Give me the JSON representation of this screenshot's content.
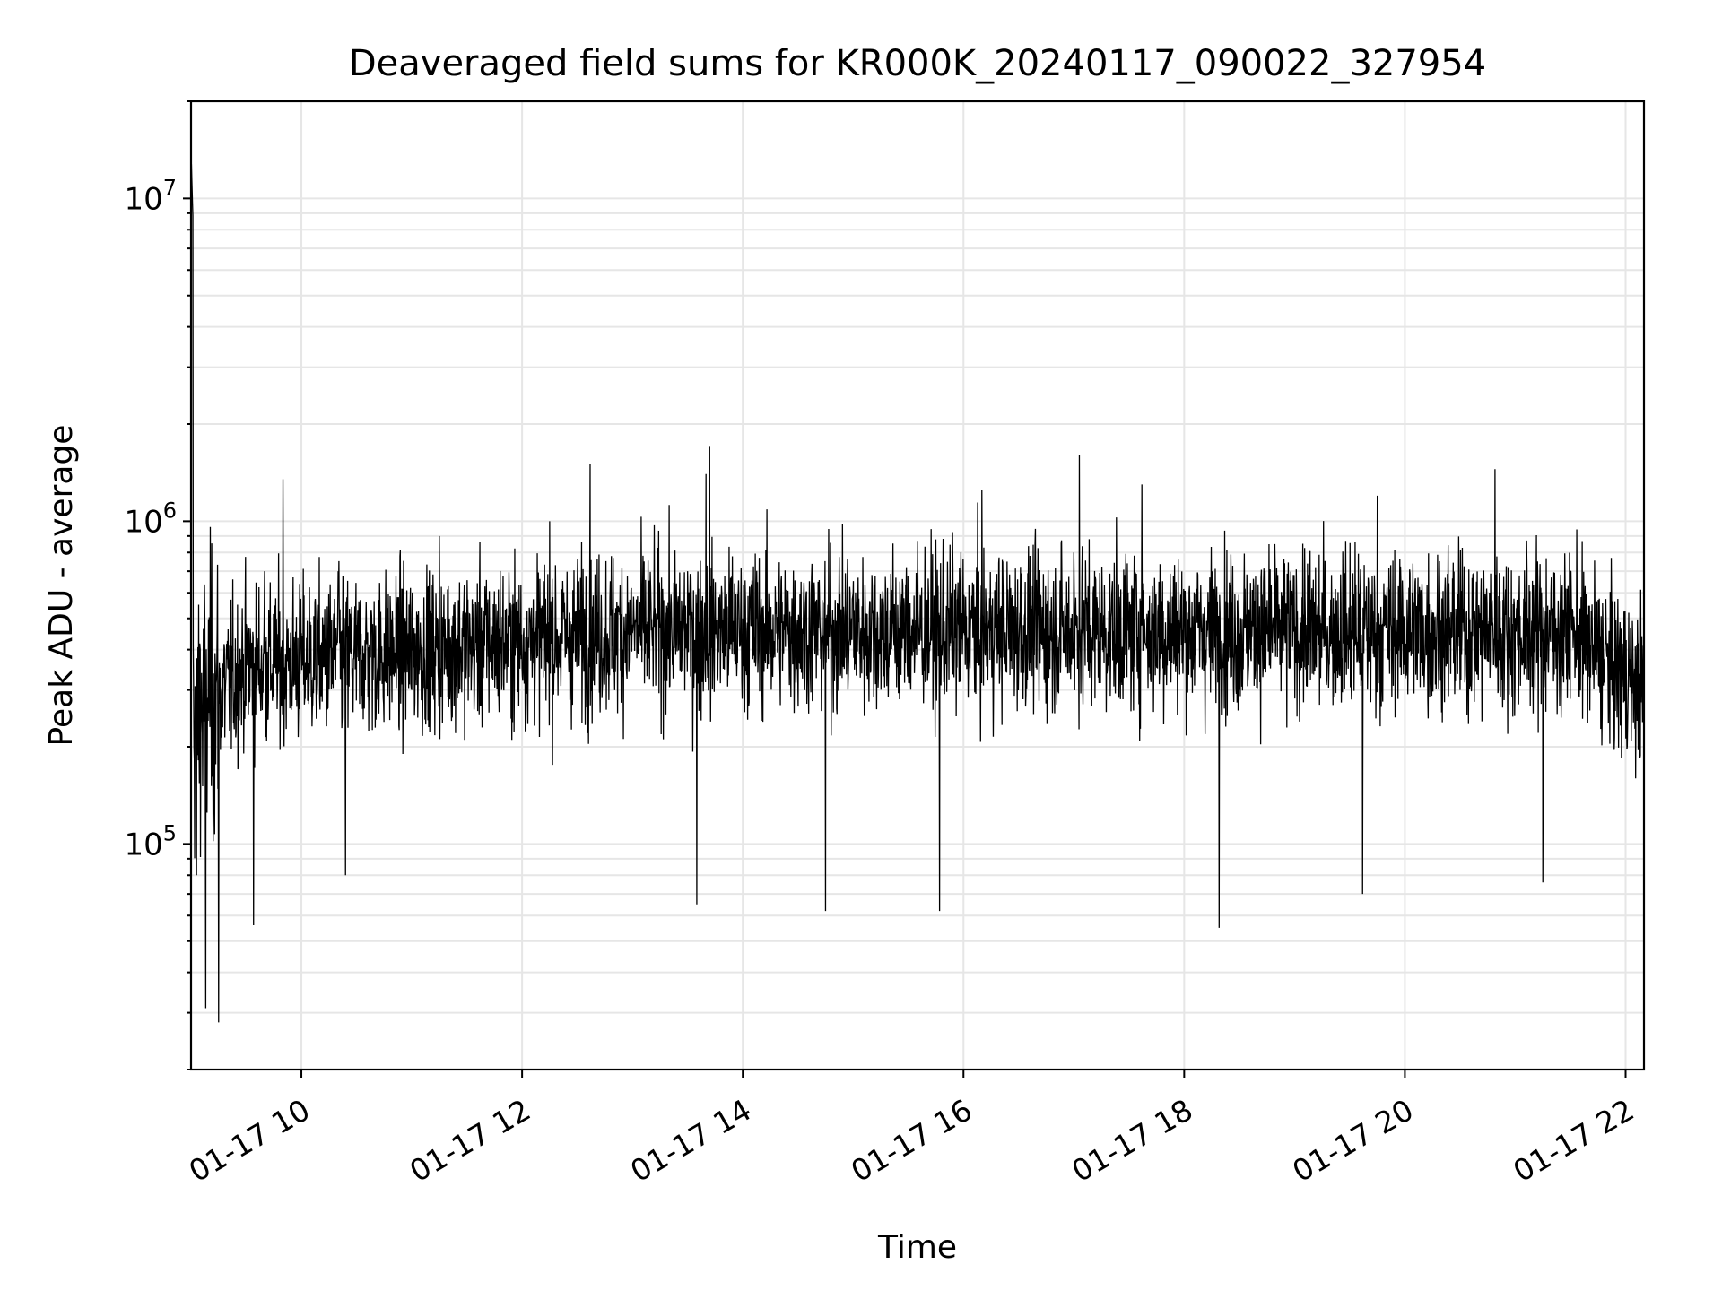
{
  "chart_data": {
    "type": "line",
    "title": "Deaveraged field sums for KR000K_20240117_090022_327954",
    "xlabel": "Time",
    "ylabel": "Peak ADU - average",
    "y_scale": "log",
    "ylim": [
      20000,
      20000000
    ],
    "xlim": [
      "2024-01-17 09:00",
      "2024-01-17 22:10"
    ],
    "grid": true,
    "line_color": "#000000",
    "x_ticks": [
      {
        "value": "2024-01-17 10:00",
        "label": "01-17 10"
      },
      {
        "value": "2024-01-17 12:00",
        "label": "01-17 12"
      },
      {
        "value": "2024-01-17 14:00",
        "label": "01-17 14"
      },
      {
        "value": "2024-01-17 16:00",
        "label": "01-17 16"
      },
      {
        "value": "2024-01-17 18:00",
        "label": "01-17 18"
      },
      {
        "value": "2024-01-17 20:00",
        "label": "01-17 20"
      },
      {
        "value": "2024-01-17 22:00",
        "label": "01-17 22"
      }
    ],
    "y_ticks": [
      {
        "value": 100000,
        "base": "10",
        "exp": "5"
      },
      {
        "value": 1000000,
        "base": "10",
        "exp": "6"
      },
      {
        "value": 10000000,
        "base": "10",
        "exp": "7"
      }
    ],
    "series": [
      {
        "x": [
          "2024-01-17 09:00",
          "2024-01-17 09:01",
          "2024-01-17 09:03",
          "2024-01-17 09:05",
          "2024-01-17 09:08",
          "2024-01-17 09:10",
          "2024-01-17 09:15",
          "2024-01-17 09:20",
          "2024-01-17 09:30",
          "2024-01-17 09:34",
          "2024-01-17 09:40",
          "2024-01-17 09:45",
          "2024-01-17 09:50",
          "2024-01-17 10:00",
          "2024-01-17 10:20",
          "2024-01-17 10:24",
          "2024-01-17 10:45",
          "2024-01-17 11:00",
          "2024-01-17 11:15",
          "2024-01-17 11:30",
          "2024-01-17 12:00",
          "2024-01-17 12:15",
          "2024-01-17 12:37",
          "2024-01-17 12:47",
          "2024-01-17 13:00",
          "2024-01-17 13:30",
          "2024-01-17 13:35",
          "2024-01-17 13:40",
          "2024-01-17 13:42",
          "2024-01-17 14:00",
          "2024-01-17 14:30",
          "2024-01-17 14:45",
          "2024-01-17 15:00",
          "2024-01-17 15:30",
          "2024-01-17 15:47",
          "2024-01-17 16:00",
          "2024-01-17 16:10",
          "2024-01-17 16:30",
          "2024-01-17 17:00",
          "2024-01-17 17:03",
          "2024-01-17 17:30",
          "2024-01-17 17:37",
          "2024-01-17 18:00",
          "2024-01-17 18:19",
          "2024-01-17 18:30",
          "2024-01-17 19:00",
          "2024-01-17 19:30",
          "2024-01-17 19:37",
          "2024-01-17 19:45",
          "2024-01-17 20:00",
          "2024-01-17 20:30",
          "2024-01-17 20:49",
          "2024-01-17 21:00",
          "2024-01-17 21:15",
          "2024-01-17 21:30",
          "2024-01-17 21:45",
          "2024-01-17 22:00",
          "2024-01-17 22:10"
        ],
        "y": [
          200000,
          14000000,
          80000,
          400000,
          31000,
          300000,
          28000,
          350000,
          480000,
          56000,
          700000,
          400000,
          1350000,
          450000,
          700000,
          80000,
          450000,
          300000,
          900000,
          500000,
          350000,
          1000000,
          1500000,
          400000,
          450000,
          700000,
          65000,
          1400000,
          1700000,
          500000,
          300000,
          62000,
          600000,
          400000,
          62000,
          450000,
          1250000,
          350000,
          800000,
          1600000,
          400000,
          1300000,
          600000,
          55000,
          300000,
          450000,
          400000,
          70000,
          1200000,
          500000,
          300000,
          1450000,
          500000,
          76000,
          700000,
          400000,
          300000,
          350000
        ]
      }
    ]
  }
}
